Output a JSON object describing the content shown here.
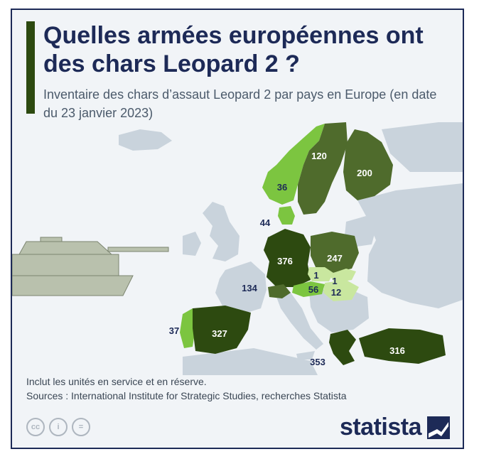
{
  "title": "Quelles armées européennes ont des chars Leopard 2 ?",
  "subtitle": "Inventaire des chars d’assaut Leopard 2 par pays en Europe (en date du 23 janvier 2023)",
  "map_values": {
    "norway": "36",
    "sweden": "120",
    "finland": "200",
    "denmark": "44",
    "germany": "376",
    "poland": "247",
    "czechia": "1",
    "slovakia": "1",
    "hungary": "12",
    "austria": "56",
    "switzerland": "134",
    "portugal": "37",
    "spain": "327",
    "greece": "353",
    "turkey": "316"
  },
  "notes": {
    "line1": "Inclut les unités en service et en réserve.",
    "line2": "Sources : International Institute for Strategic Studies, recherches Statista"
  },
  "license_icons": {
    "cc": "cc",
    "by": "i",
    "nd": "="
  },
  "brand": {
    "name": "statista"
  },
  "colors": {
    "darkest": "#2d4a10",
    "dark": "#4f6b2c",
    "bright": "#7cc540",
    "light": "#c9e79f",
    "land": "#c9d3dc",
    "water": "#f1f4f7",
    "navy": "#1d2a57"
  }
}
